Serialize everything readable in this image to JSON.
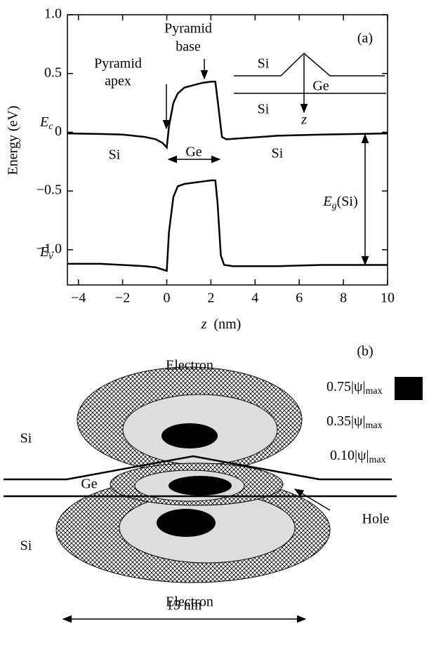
{
  "chart_data": {
    "type": "line",
    "ylabel": "Energy (eV)",
    "xlabel_var": "z",
    "xlabel_unit": "(nm)",
    "xlim": [
      -4.5,
      10
    ],
    "ylim": [
      -1.3,
      1.0
    ],
    "xticks": [
      {
        "value": -4,
        "label": "−4"
      },
      {
        "value": -2,
        "label": "−2"
      },
      0,
      2,
      4,
      6,
      8,
      10
    ],
    "yticks": [
      {
        "value": 1,
        "label": "1.0"
      },
      0.5,
      0,
      {
        "value": -0.5,
        "label": "−0.5"
      },
      {
        "value": -1,
        "label": "−1.0"
      }
    ],
    "series": [
      {
        "label": "E",
        "label_sub": "c",
        "color": "#000000",
        "x": [
          -4.5,
          -3,
          -2,
          -1,
          -0.5,
          -0.2,
          0,
          0.1,
          0.3,
          0.5,
          0.8,
          1.2,
          1.6,
          2.0,
          2.2,
          2.35,
          2.5,
          2.7,
          3.5,
          5,
          7,
          10
        ],
        "values": [
          -0.01,
          -0.015,
          -0.02,
          -0.04,
          -0.06,
          -0.09,
          -0.13,
          0.05,
          0.25,
          0.33,
          0.38,
          0.4,
          0.42,
          0.43,
          0.43,
          0.2,
          -0.04,
          -0.06,
          -0.05,
          -0.03,
          -0.02,
          -0.01
        ]
      },
      {
        "label": "E",
        "label_sub": "v",
        "color": "#000000",
        "x": [
          -4.5,
          -3,
          -2,
          -1,
          -0.5,
          0,
          0.1,
          0.3,
          0.5,
          0.8,
          1.2,
          1.6,
          2.0,
          2.2,
          2.3,
          2.45,
          2.6,
          3,
          5,
          7,
          10
        ],
        "values": [
          -1.12,
          -1.12,
          -1.13,
          -1.14,
          -1.15,
          -1.18,
          -0.85,
          -0.55,
          -0.46,
          -0.44,
          -0.43,
          -0.42,
          -0.41,
          -0.41,
          -0.6,
          -1.05,
          -1.13,
          -1.14,
          -1.14,
          -1.13,
          -1.13
        ]
      }
    ],
    "annotations": [
      "Pyramid",
      "base",
      "Pyramid",
      "apex",
      "(a)",
      "Si",
      "Ge",
      "Si",
      "Si",
      "Ge",
      "Si",
      "z"
    ],
    "gap_label": {
      "symbol": "E",
      "sub": "g",
      "rest": "(Si)"
    }
  },
  "diagram": {
    "panel_label": "(b)",
    "labels": [
      "Electron",
      "Electron",
      "Si",
      "Si",
      "Ge",
      "Hole",
      "15 nm"
    ],
    "legend": [
      {
        "text": "0.75|ψ|",
        "sub": "max"
      },
      {
        "text": "0.35|ψ|",
        "sub": "max"
      },
      {
        "text": "0.10|ψ|",
        "sub": "max"
      }
    ]
  }
}
